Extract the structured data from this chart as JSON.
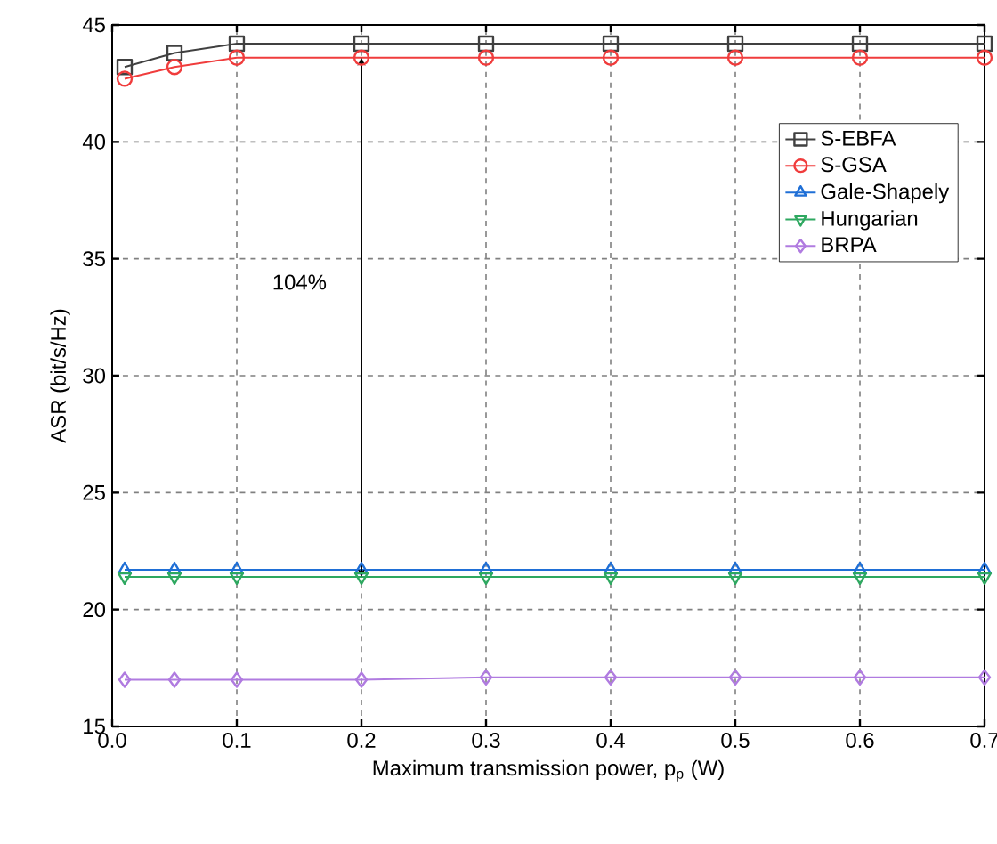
{
  "chart_data": {
    "type": "line",
    "xlabel": "Maximum transmission power, p$_{p}$ (W)",
    "ylabel": "ASR (bit/s/Hz)",
    "x": [
      0.01,
      0.05,
      0.1,
      0.2,
      0.3,
      0.4,
      0.5,
      0.6,
      0.7
    ],
    "xlim": [
      0,
      0.7
    ],
    "xticks": [
      {
        "value": 0,
        "label": "0.0"
      },
      0.1,
      0.2,
      0.3,
      0.4,
      0.5,
      0.6,
      0.7
    ],
    "ylim": [
      15,
      45
    ],
    "yticks": [
      15,
      20,
      25,
      30,
      35,
      40,
      45
    ],
    "grid": true,
    "legend": "top right",
    "line_style": "solid",
    "series": [
      {
        "name": "S-EBFA",
        "color": "#404040",
        "marker": "square",
        "values": [
          43.2,
          43.8,
          44.2,
          44.2,
          44.2,
          44.2,
          44.2,
          44.2,
          44.2
        ]
      },
      {
        "name": "S-GSA",
        "color": "#f03c3c",
        "marker": "circle",
        "values": [
          42.7,
          43.2,
          43.6,
          43.6,
          43.6,
          43.6,
          43.6,
          43.6,
          43.6
        ]
      },
      {
        "name": "Gale-Shapely",
        "color": "#1f6fd6",
        "marker": "triangle",
        "values": [
          21.7,
          21.7,
          21.7,
          21.7,
          21.7,
          21.7,
          21.7,
          21.7,
          21.7
        ]
      },
      {
        "name": "Hungarian",
        "color": "#2ea860",
        "marker": "triangle down",
        "values": [
          21.4,
          21.4,
          21.4,
          21.4,
          21.4,
          21.4,
          21.4,
          21.4,
          21.4
        ]
      },
      {
        "name": "BRPA",
        "color": "#b07be0",
        "marker": "diamond",
        "values": [
          17.0,
          17.0,
          17.0,
          17.0,
          17.1,
          17.1,
          17.1,
          17.1,
          17.1
        ]
      }
    ],
    "annotations": [
      "104%"
    ]
  }
}
